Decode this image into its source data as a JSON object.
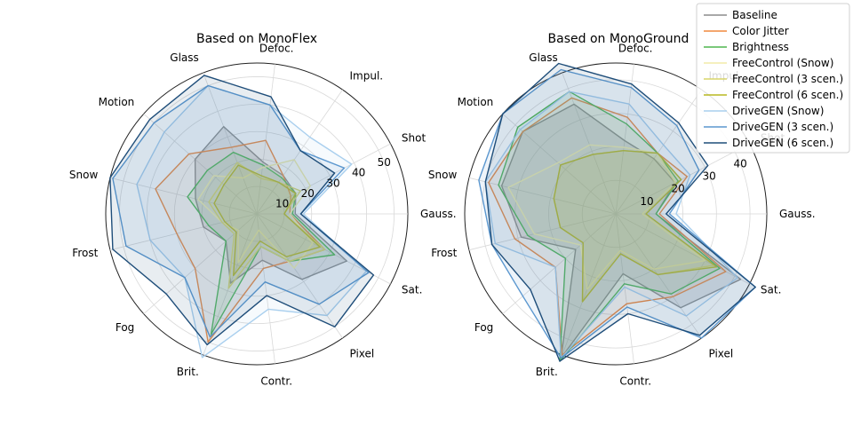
{
  "chart_data": [
    {
      "type": "radar",
      "title": "Based on MonoFlex",
      "categories": [
        "Gauss.",
        "Shot",
        "Impul.",
        "Defoc.",
        "Glass",
        "Motion",
        "Snow",
        "Frost",
        "Fog",
        "Brit.",
        "Contr.",
        "Pixel",
        "Sat."
      ],
      "rticks": [
        "10",
        "20",
        "30",
        "40",
        "50"
      ],
      "rlim": [
        0,
        55
      ],
      "grid": true,
      "series": [
        {
          "name": "Baseline",
          "values": [
            14,
            16,
            17,
            19,
            34,
            30,
            23,
            20,
            15,
            27,
            17,
            29,
            37
          ]
        },
        {
          "name": "Color Jitter",
          "values": [
            12,
            14,
            17,
            27,
            26,
            33,
            38,
            30,
            30,
            50,
            20,
            21,
            28
          ]
        },
        {
          "name": "Brightness",
          "values": [
            13,
            16,
            16,
            18,
            24,
            24,
            26,
            18,
            15,
            47,
            12,
            21,
            32
          ]
        },
        {
          "name": "FreeControl (Snow)",
          "values": [
            12,
            22,
            24,
            17,
            14,
            21,
            22,
            13,
            9,
            19,
            6,
            24,
            23
          ]
        },
        {
          "name": "FreeControl (3 scen.)",
          "values": [
            10,
            18,
            14,
            13,
            20,
            17,
            18,
            13,
            11,
            29,
            12,
            21,
            28
          ]
        },
        {
          "name": "FreeControl (6 scen.)",
          "values": [
            10,
            16,
            14,
            14,
            19,
            16,
            16,
            12,
            10,
            24,
            10,
            19,
            26
          ]
        },
        {
          "name": "DriveGEN (Snow)",
          "values": [
            17,
            39,
            34,
            40,
            50,
            45,
            45,
            40,
            35,
            56,
            35,
            45,
            45
          ]
        },
        {
          "name": "DriveGEN (3 scen.)",
          "values": [
            16,
            36,
            28,
            40,
            50,
            50,
            54,
            49,
            35,
            48,
            25,
            40,
            46
          ]
        },
        {
          "name": "DriveGEN (6 scen.)",
          "values": [
            16,
            32,
            28,
            43,
            54,
            52,
            55,
            54,
            44,
            51,
            30,
            50,
            48
          ]
        }
      ]
    },
    {
      "type": "radar",
      "title": "Based on MonoGround",
      "categories": [
        "Gauss.",
        "Shot",
        "Impul.",
        "Defoc.",
        "Glass",
        "Motion",
        "Snow",
        "Frost",
        "Fog",
        "Brit.",
        "Contr.",
        "Pixel",
        "Sat."
      ],
      "rticks": [
        "10",
        "20",
        "30",
        "40"
      ],
      "rlim": [
        0,
        45
      ],
      "grid": true,
      "series": [
        {
          "name": "Baseline",
          "values": [
            12,
            20,
            20,
            22,
            35,
            37,
            35,
            29,
            16,
            46,
            18,
            34,
            42
          ]
        },
        {
          "name": "Color Jitter",
          "values": [
            13,
            24,
            22,
            29,
            37,
            37,
            39,
            31,
            24,
            45,
            27,
            30,
            37
          ]
        },
        {
          "name": "Brightness",
          "values": [
            12,
            21,
            22,
            27,
            39,
            39,
            36,
            27,
            20,
            47,
            21,
            29,
            35
          ]
        },
        {
          "name": "FreeControl (Snow)",
          "values": [
            8,
            20,
            22,
            20,
            22,
            23,
            33,
            25,
            14,
            24,
            11,
            20,
            30
          ]
        },
        {
          "name": "FreeControl (3 scen.)",
          "values": [
            9,
            22,
            22,
            19,
            19,
            22,
            19,
            17,
            13,
            28,
            12,
            22,
            33
          ]
        },
        {
          "name": "FreeControl (6 scen.)",
          "values": [
            9,
            22,
            22,
            19,
            19,
            22,
            19,
            17,
            13,
            28,
            12,
            22,
            34
          ]
        },
        {
          "name": "DriveGEN (Snow)",
          "values": [
            18,
            25,
            25,
            33,
            39,
            38,
            40,
            37,
            24,
            46,
            22,
            37,
            41
          ]
        },
        {
          "name": "DriveGEN (3 scen.)",
          "values": [
            16,
            28,
            32,
            38,
            46,
            45,
            42,
            38,
            37,
            46,
            28,
            45,
            47
          ]
        },
        {
          "name": "DriveGEN (6 scen.)",
          "values": [
            15,
            31,
            33,
            39,
            48,
            45,
            40,
            38,
            34,
            47,
            30,
            44,
            47
          ]
        }
      ]
    }
  ],
  "legend": {
    "placement": "top-right",
    "items": [
      {
        "label": "Baseline",
        "color": "#8c8c8c"
      },
      {
        "label": "Color Jitter",
        "color": "#f0883e"
      },
      {
        "label": "Brightness",
        "color": "#4fb64f"
      },
      {
        "label": "FreeControl (Snow)",
        "color": "#f2eca8"
      },
      {
        "label": "FreeControl (3 scen.)",
        "color": "#d8d56a"
      },
      {
        "label": "FreeControl (6 scen.)",
        "color": "#b8b820"
      },
      {
        "label": "DriveGEN (Snow)",
        "color": "#a9cfee"
      },
      {
        "label": "DriveGEN (3 scen.)",
        "color": "#5b97cf"
      },
      {
        "label": "DriveGEN (6 scen.)",
        "color": "#1f4e7a"
      }
    ]
  }
}
